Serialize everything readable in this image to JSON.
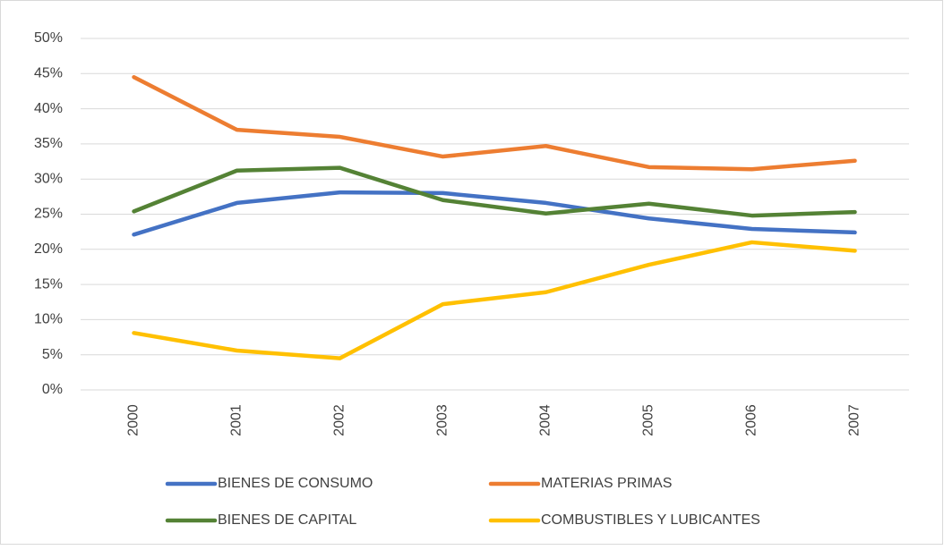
{
  "chart_data": {
    "type": "line",
    "categories": [
      "2000",
      "2001",
      "2002",
      "2003",
      "2004",
      "2005",
      "2006",
      "2007"
    ],
    "series": [
      {
        "name": "BIENES DE CONSUMO",
        "color": "#4472c4",
        "values": [
          22.1,
          26.6,
          28.1,
          28.0,
          26.6,
          24.4,
          22.9,
          22.4
        ]
      },
      {
        "name": "MATERIAS PRIMAS",
        "color": "#ed7d31",
        "values": [
          44.5,
          37.0,
          36.0,
          33.2,
          34.7,
          31.7,
          31.4,
          32.6
        ]
      },
      {
        "name": "BIENES DE CAPITAL",
        "color": "#548235",
        "values": [
          25.4,
          31.2,
          31.6,
          27.0,
          25.1,
          26.5,
          24.8,
          25.3
        ]
      },
      {
        "name": "COMBUSTIBLES Y LUBICANTES",
        "color": "#ffc000",
        "values": [
          8.1,
          5.6,
          4.5,
          12.2,
          13.9,
          17.8,
          21.0,
          19.8
        ]
      }
    ],
    "ylim": [
      0,
      50
    ],
    "yticks": [
      {
        "value": 0,
        "label": "0%"
      },
      {
        "value": 5,
        "label": "5%"
      },
      {
        "value": 10,
        "label": "10%"
      },
      {
        "value": 15,
        "label": "15%"
      },
      {
        "value": 20,
        "label": "20%"
      },
      {
        "value": 25,
        "label": "25%"
      },
      {
        "value": 30,
        "label": "30%"
      },
      {
        "value": 35,
        "label": "35%"
      },
      {
        "value": 40,
        "label": "40%"
      },
      {
        "value": 45,
        "label": "45%"
      },
      {
        "value": 50,
        "label": "50%"
      }
    ],
    "grid": true,
    "legend": "bottom"
  }
}
